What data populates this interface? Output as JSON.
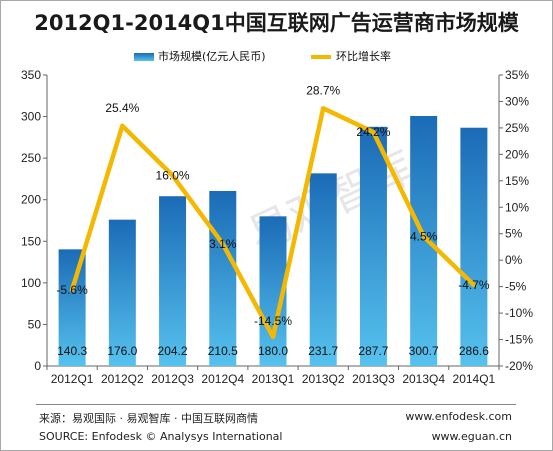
{
  "title": "2012Q1-2014Q1中国互联网广告运营商市场规模",
  "watermark": "易观智库",
  "footer": {
    "source_cn": "来源：易观国际 · 易观智库 · 中国互联网商情",
    "source_en": "SOURCE: Enfodesk © Analysys International",
    "url1": "www.enfodesk.com",
    "url2": "www.eguan.cn"
  },
  "colors": {
    "bar_top": "#1b6bb6",
    "bar_bottom": "#56c2ee",
    "line": "#f5b800"
  },
  "chart_data": {
    "type": "bar+line",
    "categories": [
      "2012Q1",
      "2012Q2",
      "2012Q3",
      "2012Q4",
      "2013Q1",
      "2013Q2",
      "2013Q3",
      "2013Q4",
      "2014Q1"
    ],
    "series": [
      {
        "name": "市场规模(亿元人民币)",
        "type": "bar",
        "axis": "left",
        "values": [
          140.3,
          176.0,
          204.2,
          210.5,
          180.0,
          231.7,
          287.7,
          300.7,
          286.6
        ],
        "labels": [
          "140.3",
          "176.0",
          "204.2",
          "210.5",
          "180.0",
          "231.7",
          "287.7",
          "300.7",
          "286.6"
        ]
      },
      {
        "name": "环比增长率",
        "type": "line",
        "axis": "right",
        "values": [
          -5.6,
          25.4,
          16.0,
          3.1,
          -14.5,
          28.7,
          24.2,
          4.5,
          -4.7
        ],
        "labels": [
          "-5.6%",
          "25.4%",
          "16.0%",
          "3.1%",
          "-14.5%",
          "28.7%",
          "24.2%",
          "4.5%",
          "-4.7%"
        ]
      }
    ],
    "y_left": {
      "min": 0,
      "max": 350,
      "ticks": [
        0,
        50,
        100,
        150,
        200,
        250,
        300,
        350
      ],
      "tick_labels": [
        "0",
        "50",
        "100",
        "150",
        "200",
        "250",
        "300",
        "350"
      ]
    },
    "y_right": {
      "min": -20,
      "max": 35,
      "ticks": [
        -20,
        -15,
        -10,
        -5,
        0,
        5,
        10,
        15,
        20,
        25,
        30,
        35
      ],
      "tick_labels": [
        "-20%",
        "-15%",
        "-10%",
        "-5%",
        "0%",
        "5%",
        "10%",
        "15%",
        "20%",
        "25%",
        "30%",
        "35%"
      ]
    },
    "grid": false,
    "legend_position": "top-center"
  }
}
